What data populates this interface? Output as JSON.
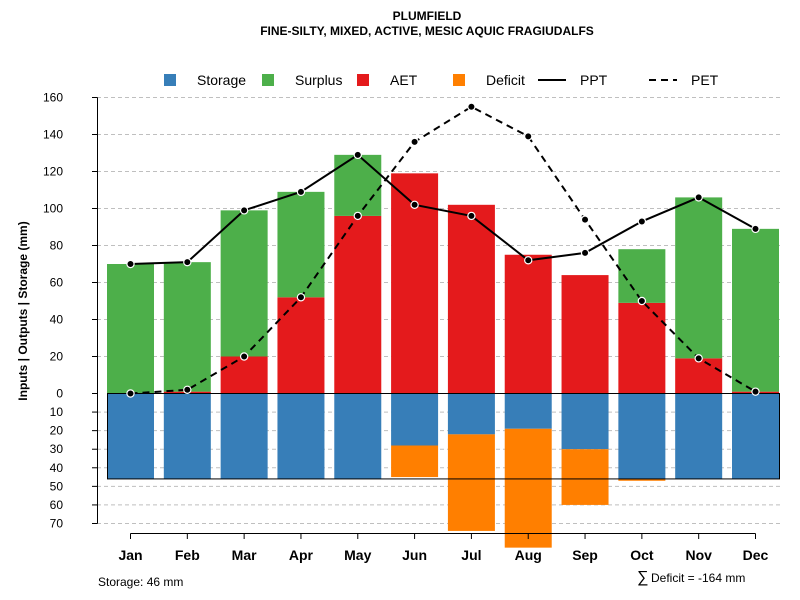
{
  "title": "PLUMFIELD",
  "subtitle": "FINE-SILTY, MIXED, ACTIVE, MESIC AQUIC FRAGIUDALFS",
  "ylabel": "Inputs | Outputs | Storage    (mm)",
  "storage_note": "Storage: 46 mm",
  "deficit_symbol": "∑",
  "deficit_note": "Deficit = -164 mm",
  "colors": {
    "storage": "#377EB8",
    "surplus": "#4DAF4A",
    "aet": "#E41A1C",
    "deficit": "#FF7F00",
    "line": "#000000",
    "grid": "#bfbfbf"
  },
  "chart_data": {
    "type": "bar",
    "title": "PLUMFIELD",
    "subtitle": "FINE-SILTY, MIXED, ACTIVE, MESIC AQUIC FRAGIUDALFS",
    "xlabel": "",
    "ylabel": "Inputs | Outputs | Storage    (mm)",
    "legend_position": "top",
    "legend": [
      {
        "name": "Storage",
        "kind": "box",
        "color": "#377EB8"
      },
      {
        "name": "Surplus",
        "kind": "box",
        "color": "#4DAF4A"
      },
      {
        "name": "AET",
        "kind": "box",
        "color": "#E41A1C"
      },
      {
        "name": "Deficit",
        "kind": "box",
        "color": "#FF7F00"
      },
      {
        "name": "PPT",
        "kind": "solid-line",
        "color": "#000000"
      },
      {
        "name": "PET",
        "kind": "dashed-line",
        "color": "#000000"
      }
    ],
    "categories": [
      "Jan",
      "Feb",
      "Mar",
      "Apr",
      "May",
      "Jun",
      "Jul",
      "Aug",
      "Sep",
      "Oct",
      "Nov",
      "Dec"
    ],
    "ylim_upper": [
      0,
      160
    ],
    "yticks_upper": [
      0,
      20,
      40,
      60,
      80,
      100,
      120,
      140,
      160
    ],
    "ylim_lower": [
      0,
      70
    ],
    "yticks_lower": [
      10,
      20,
      30,
      40,
      50,
      60,
      70
    ],
    "storage_capacity": 46,
    "series": [
      {
        "name": "AET",
        "values": [
          0,
          1,
          20,
          52,
          96,
          119,
          102,
          75,
          64,
          49,
          19,
          1
        ]
      },
      {
        "name": "Surplus",
        "values": [
          70,
          70,
          79,
          57,
          33,
          0,
          0,
          0,
          0,
          29,
          87,
          88
        ]
      },
      {
        "name": "Storage",
        "values": [
          46,
          46,
          46,
          46,
          46,
          28,
          22,
          19,
          30,
          46,
          46,
          46
        ]
      },
      {
        "name": "Deficit",
        "values": [
          0,
          0,
          0,
          0,
          0,
          17,
          52,
          64,
          30,
          1,
          0,
          0
        ]
      },
      {
        "name": "PPT",
        "values": [
          70,
          71,
          99,
          109,
          129,
          102,
          96,
          72,
          76,
          93,
          106,
          89
        ]
      },
      {
        "name": "PET",
        "values": [
          0,
          2,
          20,
          52,
          96,
          136,
          155,
          139,
          94,
          50,
          19,
          1
        ]
      }
    ]
  }
}
